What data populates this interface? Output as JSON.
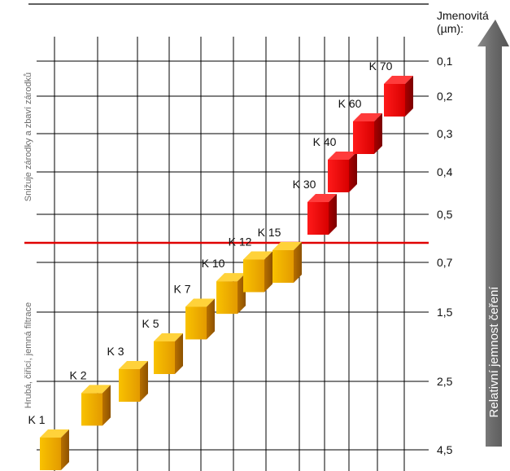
{
  "chart_data": {
    "type": "scatter",
    "title": "",
    "unit_label": [
      "Jmenovitá",
      "(µm):"
    ],
    "arrow_label": "Relativní jemnost čeření",
    "y_ticks": [
      "0,1",
      "0,2",
      "0,3",
      "0,4",
      "0,5",
      "0,7",
      "1,5",
      "2,5",
      "4,5"
    ],
    "zone_labels": {
      "upper": "Snižuje zárodky a zbaví zárodků",
      "lower": "Hrubá, čiřicí, jemná filtrace"
    },
    "threshold_color": "#e00000",
    "points": [
      {
        "label": "K 1",
        "position": 1,
        "rating_um": 4.5,
        "zone": "filtration"
      },
      {
        "label": "K 2",
        "position": 2,
        "rating_um": 3.2,
        "zone": "filtration"
      },
      {
        "label": "K 3",
        "position": 3,
        "rating_um": 2.5,
        "zone": "filtration"
      },
      {
        "label": "K 5",
        "position": 4,
        "rating_um": 2.1,
        "zone": "filtration"
      },
      {
        "label": "K 7",
        "position": 5,
        "rating_um": 1.6,
        "zone": "filtration"
      },
      {
        "label": "K 10",
        "position": 6,
        "rating_um": 1.2,
        "zone": "filtration"
      },
      {
        "label": "K 12",
        "position": 7,
        "rating_um": 0.85,
        "zone": "filtration"
      },
      {
        "label": "K 15",
        "position": 8,
        "rating_um": 0.7,
        "zone": "filtration"
      },
      {
        "label": "K 30",
        "position": 9,
        "rating_um": 0.5,
        "zone": "germ"
      },
      {
        "label": "K 40",
        "position": 10,
        "rating_um": 0.4,
        "zone": "germ"
      },
      {
        "label": "K 60",
        "position": 11,
        "rating_um": 0.3,
        "zone": "germ"
      },
      {
        "label": "K 70",
        "position": 12,
        "rating_um": 0.2,
        "zone": "germ"
      }
    ],
    "colors": {
      "filtration": "#f7b500",
      "germ": "#e00000",
      "arrow": "#6e6e6e",
      "grid": "#000000"
    }
  }
}
